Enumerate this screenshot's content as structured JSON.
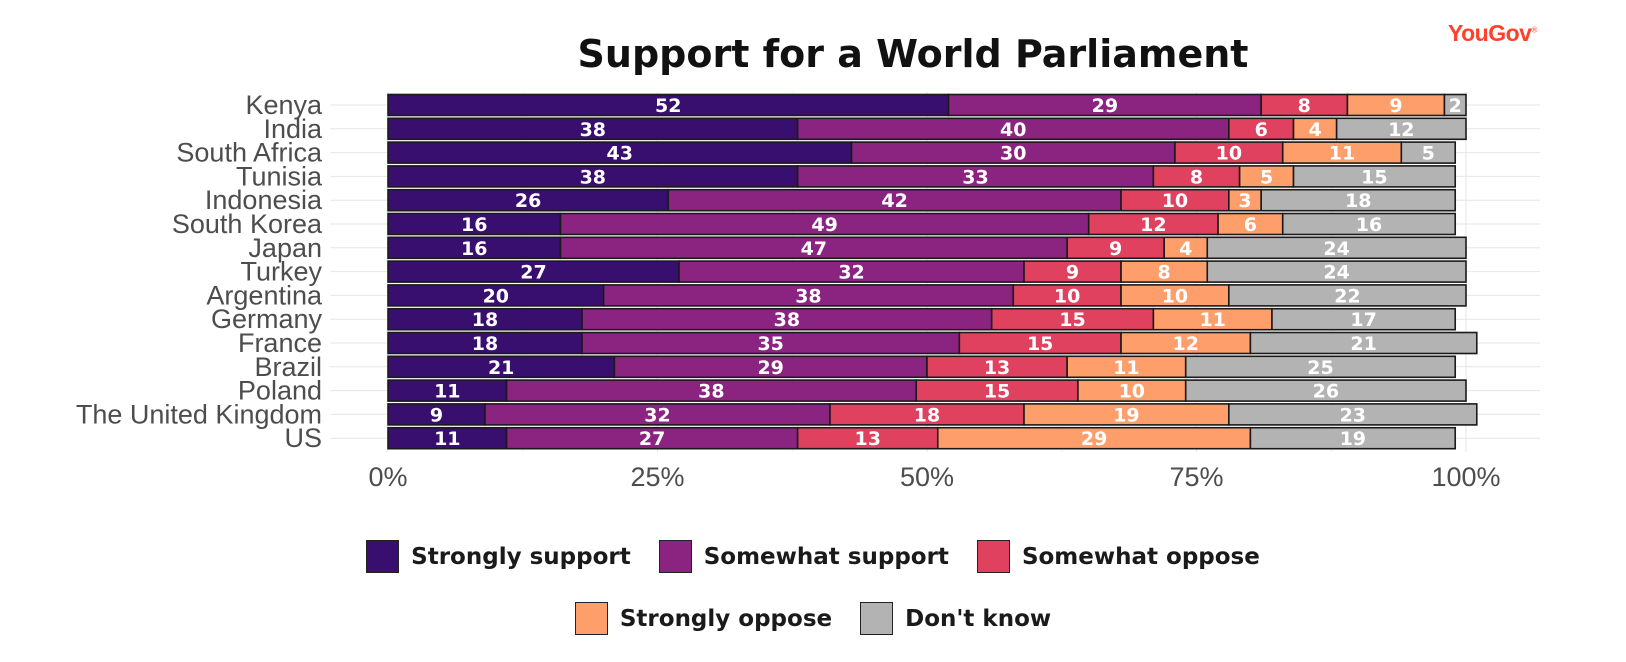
{
  "brand": {
    "name": "YouGov"
  },
  "chart_data": {
    "type": "bar",
    "orientation": "horizontal",
    "stacked": true,
    "title": "Support for a World Parliament",
    "xlabel": "",
    "ylabel": "",
    "xlim": [
      0,
      100
    ],
    "x_ticks": [
      "0%",
      "25%",
      "50%",
      "75%",
      "100%"
    ],
    "grid": true,
    "legend_placement": "bottom",
    "categories": [
      "Kenya",
      "India",
      "South Africa",
      "Tunisia",
      "Indonesia",
      "South Korea",
      "Japan",
      "Turkey",
      "Argentina",
      "Germany",
      "France",
      "Brazil",
      "Poland",
      "The United Kingdom",
      "US"
    ],
    "series": [
      {
        "name": "Strongly support",
        "color": "#380f6e",
        "label_color": "#ffffff",
        "values": [
          52,
          38,
          43,
          38,
          26,
          16,
          16,
          27,
          20,
          18,
          18,
          21,
          11,
          9,
          11
        ]
      },
      {
        "name": "Somewhat support",
        "color": "#8b2481",
        "label_color": "#ffffff",
        "values": [
          29,
          40,
          30,
          33,
          42,
          49,
          47,
          32,
          38,
          38,
          35,
          29,
          38,
          32,
          27
        ]
      },
      {
        "name": "Somewhat oppose",
        "color": "#e0415e",
        "label_color": "#ffffff",
        "values": [
          8,
          6,
          10,
          8,
          10,
          12,
          9,
          9,
          10,
          15,
          15,
          13,
          15,
          18,
          13
        ]
      },
      {
        "name": "Strongly oppose",
        "color": "#fe9e6a",
        "label_color": "#ffffff",
        "values": [
          9,
          4,
          11,
          5,
          3,
          6,
          4,
          8,
          10,
          11,
          12,
          11,
          10,
          19,
          29
        ]
      },
      {
        "name": "Don't know",
        "color": "#b3b3b3",
        "label_color": "#ffffff",
        "values": [
          2,
          12,
          5,
          15,
          18,
          16,
          24,
          24,
          22,
          17,
          21,
          25,
          26,
          23,
          19
        ]
      }
    ]
  }
}
